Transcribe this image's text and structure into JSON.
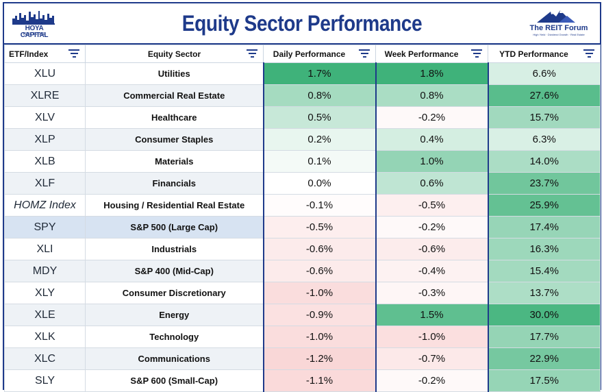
{
  "header": {
    "title": "Equity Sector Performance",
    "left_logo": {
      "name": "HOYA CAPITAL",
      "sub": "REAL ESTATE"
    },
    "right_logo": {
      "name": "The REIT Forum",
      "tagline": "High Yield · Dividend Growth · Real Estate"
    }
  },
  "colors": {
    "title_blue": "#1e3a8a",
    "positive_max": "#3fb27a",
    "negative_max": "#f5b5b5",
    "neutral": "#ffffff"
  },
  "chart_data": {
    "type": "table",
    "title": "Equity Sector Performance",
    "columns": [
      "ETF/Index",
      "Equity Sector",
      "Daily Performance",
      "Week Performance",
      "YTD Performance"
    ],
    "color_scale": "green positive / red negative heatmap per performance column",
    "rows": [
      {
        "ticker": "XLU",
        "sector": "Utilities",
        "daily": "1.7%",
        "week": "1.8%",
        "ytd": "6.6%",
        "daily_v": 1.7,
        "week_v": 1.8,
        "ytd_v": 6.6
      },
      {
        "ticker": "XLRE",
        "sector": "Commercial Real Estate",
        "daily": "0.8%",
        "week": "0.8%",
        "ytd": "27.6%",
        "daily_v": 0.8,
        "week_v": 0.8,
        "ytd_v": 27.6
      },
      {
        "ticker": "XLV",
        "sector": "Healthcare",
        "daily": "0.5%",
        "week": "-0.2%",
        "ytd": "15.7%",
        "daily_v": 0.5,
        "week_v": -0.2,
        "ytd_v": 15.7
      },
      {
        "ticker": "XLP",
        "sector": "Consumer Staples",
        "daily": "0.2%",
        "week": "0.4%",
        "ytd": "6.3%",
        "daily_v": 0.2,
        "week_v": 0.4,
        "ytd_v": 6.3
      },
      {
        "ticker": "XLB",
        "sector": "Materials",
        "daily": "0.1%",
        "week": "1.0%",
        "ytd": "14.0%",
        "daily_v": 0.1,
        "week_v": 1.0,
        "ytd_v": 14.0
      },
      {
        "ticker": "XLF",
        "sector": "Financials",
        "daily": "0.0%",
        "week": "0.6%",
        "ytd": "23.7%",
        "daily_v": 0.0,
        "week_v": 0.6,
        "ytd_v": 23.7
      },
      {
        "ticker": "HOMZ Index",
        "sector": "Housing / Residential Real Estate",
        "daily": "-0.1%",
        "week": "-0.5%",
        "ytd": "25.9%",
        "daily_v": -0.1,
        "week_v": -0.5,
        "ytd_v": 25.9
      },
      {
        "ticker": "SPY",
        "sector": "S&P 500 (Large Cap)",
        "daily": "-0.5%",
        "week": "-0.2%",
        "ytd": "17.4%",
        "daily_v": -0.5,
        "week_v": -0.2,
        "ytd_v": 17.4
      },
      {
        "ticker": "XLI",
        "sector": "Industrials",
        "daily": "-0.6%",
        "week": "-0.6%",
        "ytd": "16.3%",
        "daily_v": -0.6,
        "week_v": -0.6,
        "ytd_v": 16.3
      },
      {
        "ticker": "MDY",
        "sector": "S&P 400 (Mid-Cap)",
        "daily": "-0.6%",
        "week": "-0.4%",
        "ytd": "15.4%",
        "daily_v": -0.6,
        "week_v": -0.4,
        "ytd_v": 15.4
      },
      {
        "ticker": "XLY",
        "sector": "Consumer Discretionary",
        "daily": "-1.0%",
        "week": "-0.3%",
        "ytd": "13.7%",
        "daily_v": -1.0,
        "week_v": -0.3,
        "ytd_v": 13.7
      },
      {
        "ticker": "XLE",
        "sector": "Energy",
        "daily": "-0.9%",
        "week": "1.5%",
        "ytd": "30.0%",
        "daily_v": -0.9,
        "week_v": 1.5,
        "ytd_v": 30.0
      },
      {
        "ticker": "XLK",
        "sector": "Technology",
        "daily": "-1.0%",
        "week": "-1.0%",
        "ytd": "17.7%",
        "daily_v": -1.0,
        "week_v": -1.0,
        "ytd_v": 17.7
      },
      {
        "ticker": "XLC",
        "sector": "Communications",
        "daily": "-1.2%",
        "week": "-0.7%",
        "ytd": "22.9%",
        "daily_v": -1.2,
        "week_v": -0.7,
        "ytd_v": 22.9
      },
      {
        "ticker": "SLY",
        "sector": "S&P 600 (Small-Cap)",
        "daily": "-1.1%",
        "week": "-0.2%",
        "ytd": "17.5%",
        "daily_v": -1.1,
        "week_v": -0.2,
        "ytd_v": 17.5
      }
    ]
  }
}
